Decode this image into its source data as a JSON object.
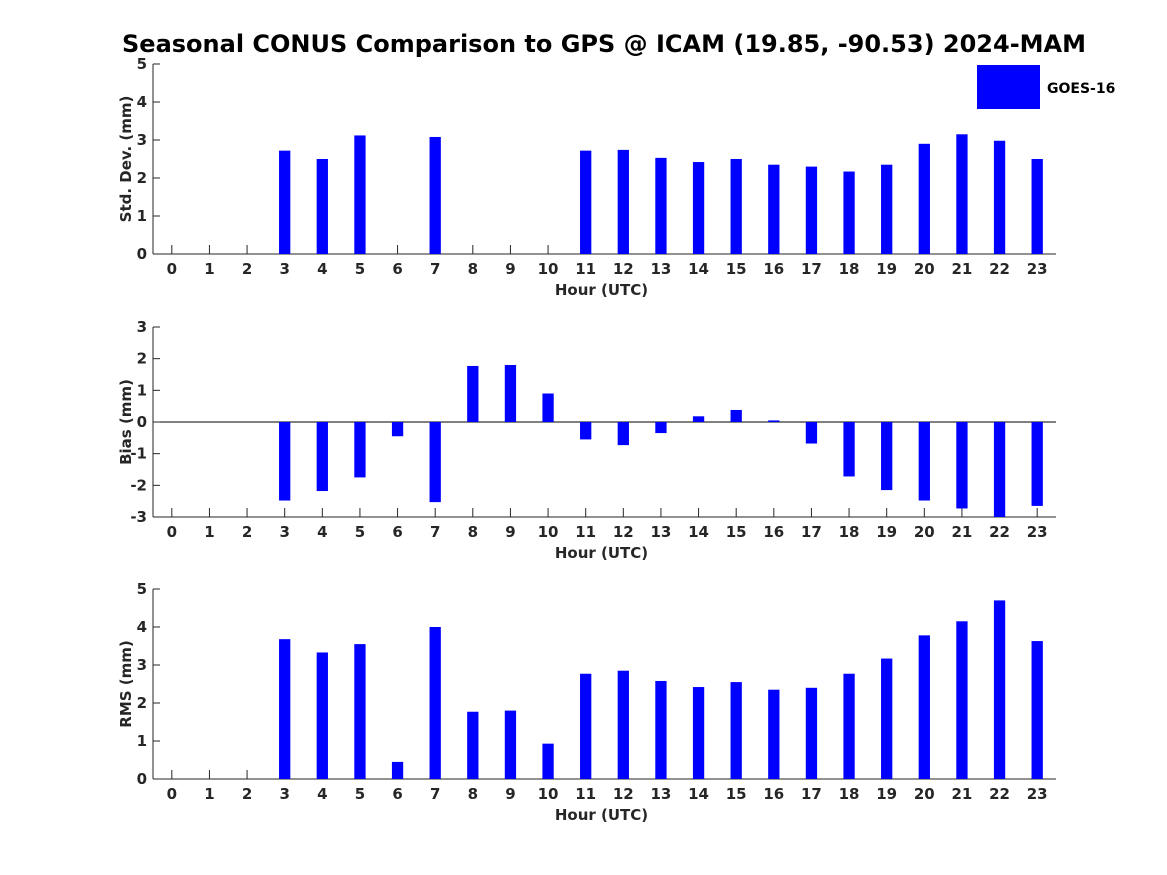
{
  "figure_title": "Seasonal CONUS Comparison to GPS @ ICAM (19.85, -90.53) 2024-MAM",
  "legend": {
    "label": "GOES-16",
    "color": "#0000ff"
  },
  "chart_data": [
    {
      "type": "bar",
      "ylabel": "Std. Dev. (mm)",
      "xlabel": "Hour (UTC)",
      "ylim": [
        0,
        5
      ],
      "yticks": [
        0,
        1,
        2,
        3,
        4,
        5
      ],
      "categories": [
        0,
        1,
        2,
        3,
        4,
        5,
        6,
        7,
        8,
        9,
        10,
        11,
        12,
        13,
        14,
        15,
        16,
        17,
        18,
        19,
        20,
        21,
        22,
        23
      ],
      "series": [
        {
          "color": "#0000ff",
          "values": [
            null,
            null,
            null,
            2.72,
            2.5,
            3.12,
            null,
            3.08,
            null,
            null,
            null,
            2.72,
            2.74,
            2.53,
            2.42,
            2.5,
            2.35,
            2.3,
            2.17,
            2.35,
            2.9,
            3.15,
            2.98,
            2.5
          ]
        }
      ],
      "grid": false
    },
    {
      "type": "bar",
      "ylabel": "Bias (mm)",
      "xlabel": "Hour (UTC)",
      "ylim": [
        -3,
        3
      ],
      "yticks": [
        -3,
        -2,
        -1,
        0,
        1,
        2,
        3
      ],
      "categories": [
        0,
        1,
        2,
        3,
        4,
        5,
        6,
        7,
        8,
        9,
        10,
        11,
        12,
        13,
        14,
        15,
        16,
        17,
        18,
        19,
        20,
        21,
        22,
        23
      ],
      "series": [
        {
          "color": "#0000ff",
          "values": [
            null,
            null,
            null,
            -2.48,
            -2.18,
            -1.75,
            -0.45,
            -2.53,
            1.77,
            1.8,
            0.9,
            -0.55,
            -0.73,
            -0.35,
            0.18,
            0.38,
            0.05,
            -0.68,
            -1.72,
            -2.15,
            -2.48,
            -2.73,
            -3.0,
            -2.65
          ]
        }
      ],
      "grid": false
    },
    {
      "type": "bar",
      "ylabel": "RMS (mm)",
      "xlabel": "Hour (UTC)",
      "ylim": [
        0,
        5
      ],
      "yticks": [
        0,
        1,
        2,
        3,
        4,
        5
      ],
      "categories": [
        0,
        1,
        2,
        3,
        4,
        5,
        6,
        7,
        8,
        9,
        10,
        11,
        12,
        13,
        14,
        15,
        16,
        17,
        18,
        19,
        20,
        21,
        22,
        23
      ],
      "series": [
        {
          "color": "#0000ff",
          "values": [
            null,
            null,
            null,
            3.68,
            3.33,
            3.55,
            0.45,
            4.0,
            1.77,
            1.8,
            0.93,
            2.77,
            2.85,
            2.58,
            2.42,
            2.55,
            2.35,
            2.4,
            2.77,
            3.17,
            3.78,
            4.15,
            4.7,
            3.63
          ]
        }
      ],
      "grid": false
    }
  ]
}
